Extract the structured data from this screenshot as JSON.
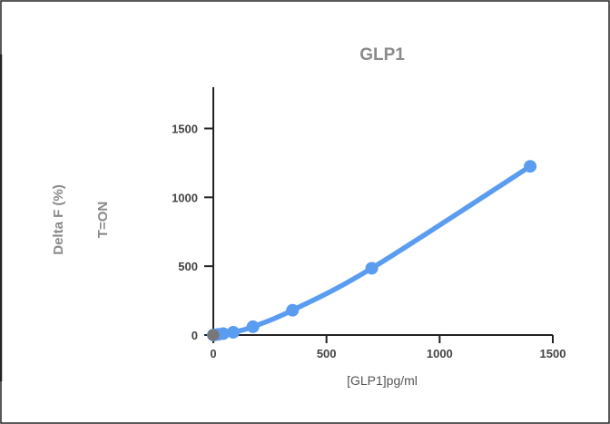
{
  "chart_data": {
    "type": "line",
    "title": "GLP1",
    "xlabel": "[GLP1]pg/ml",
    "ylabel": "Delta F (%)",
    "ylabel2": "T=ON",
    "xlim": [
      0,
      1500
    ],
    "ylim": [
      0,
      1800
    ],
    "x_ticks": [
      0,
      500,
      1000,
      1500
    ],
    "y_ticks": [
      0,
      500,
      1000,
      1500
    ],
    "grid": false,
    "series": [
      {
        "color": "#5a9cf0",
        "x": [
          0,
          5,
          22,
          44,
          88,
          175,
          350,
          700,
          1400
        ],
        "y": [
          0,
          1,
          5,
          10,
          20,
          60,
          180,
          485,
          1225
        ]
      }
    ],
    "reference_point": {
      "x": 0,
      "y": 0,
      "color": "#777777"
    }
  }
}
